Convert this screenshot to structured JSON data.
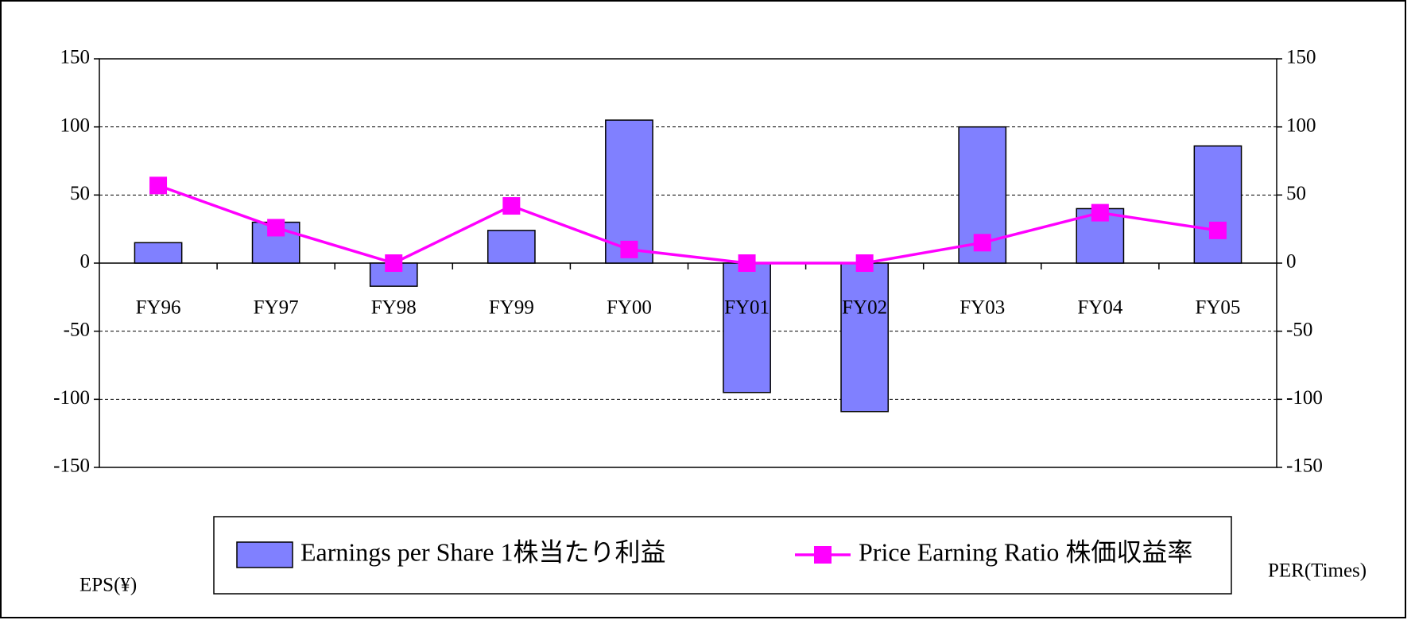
{
  "chart_data": {
    "type": "bar",
    "categories": [
      "FY96",
      "FY97",
      "FY98",
      "FY99",
      "FY00",
      "FY01",
      "FY02",
      "FY03",
      "FY04",
      "FY05"
    ],
    "series": [
      {
        "name": "Earnings per Share  1株当たり利益",
        "type": "bar",
        "color": "#8080ff",
        "values": [
          15,
          30,
          -17,
          24,
          105,
          -95,
          -109,
          100,
          40,
          86
        ]
      },
      {
        "name": "Price Earning Ratio  株価収益率",
        "type": "line",
        "axis": "y2",
        "color": "#ff00ff",
        "values": [
          57,
          26,
          0,
          42,
          10,
          0,
          0,
          15,
          37,
          24
        ]
      }
    ],
    "y_label": "EPS(¥)",
    "y2_label": "PER(Times)",
    "ylim": [
      -150,
      150
    ],
    "yticks": [
      -150,
      -100,
      -50,
      0,
      50,
      100,
      150
    ],
    "y2lim": [
      -150,
      150
    ],
    "y2ticks": [
      -150,
      -100,
      -50,
      0,
      50,
      100,
      150
    ],
    "grid": true
  }
}
